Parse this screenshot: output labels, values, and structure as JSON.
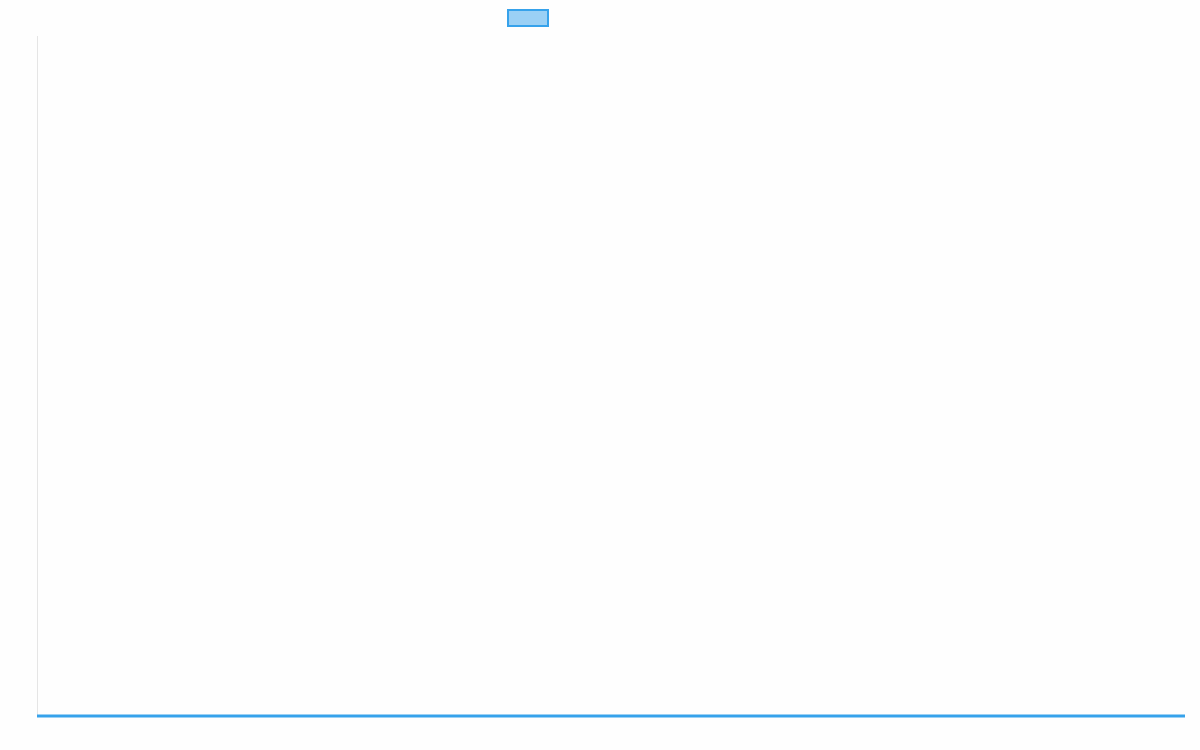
{
  "chart_data": {
    "type": "line",
    "title": "",
    "xlabel": "",
    "ylabel": "",
    "categories": [],
    "series": [
      {
        "label": "",
        "values": [],
        "border_color": "#36a2eb",
        "fill_color": "#9ad0f5"
      }
    ],
    "grid": false,
    "legend_position": "top",
    "axis_color": "#e5e5e5"
  }
}
